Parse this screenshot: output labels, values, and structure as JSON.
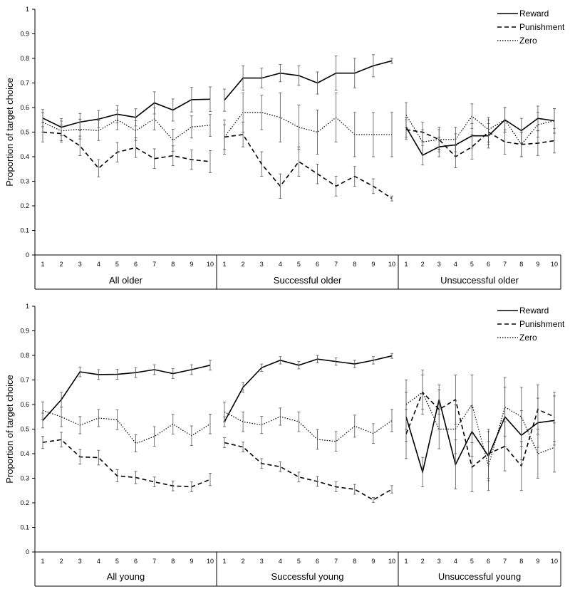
{
  "chart_data": {
    "type": "line",
    "ylabel": "Proportion of target choice",
    "yticks": [
      "0",
      "0.1",
      "0.2",
      "0.3",
      "0.4",
      "0.5",
      "0.6",
      "0.7",
      "0.8",
      "0.9",
      "1"
    ],
    "ylim": [
      0,
      1
    ],
    "x": [
      1,
      2,
      3,
      4,
      5,
      6,
      7,
      8,
      9,
      10
    ],
    "legend": [
      "Reward",
      "Punishment",
      "Zero"
    ],
    "legend_position": "top-right",
    "series_styles": {
      "Reward": "solid",
      "Punishment": "dashed",
      "Zero": "dotted"
    },
    "panels": [
      {
        "groups": [
          {
            "label": "All older",
            "series": [
              {
                "name": "Reward",
                "values": [
                  0.557,
                  0.52,
                  0.541,
                  0.553,
                  0.573,
                  0.56,
                  0.619,
                  0.59,
                  0.632,
                  0.634
                ],
                "errors": [
                  0.035,
                  0.035,
                  0.035,
                  0.035,
                  0.035,
                  0.035,
                  0.045,
                  0.045,
                  0.05,
                  0.05
                ]
              },
              {
                "name": "Punishment",
                "values": [
                  0.5,
                  0.494,
                  0.444,
                  0.353,
                  0.418,
                  0.437,
                  0.392,
                  0.404,
                  0.388,
                  0.38
                ],
                "errors": [
                  0.04,
                  0.035,
                  0.04,
                  0.035,
                  0.04,
                  0.04,
                  0.04,
                  0.04,
                  0.04,
                  0.045
                ]
              },
              {
                "name": "Zero",
                "values": [
                  0.54,
                  0.505,
                  0.512,
                  0.506,
                  0.55,
                  0.506,
                  0.554,
                  0.467,
                  0.521,
                  0.528
                ],
                "errors": [
                  0.04,
                  0.04,
                  0.04,
                  0.04,
                  0.04,
                  0.04,
                  0.045,
                  0.045,
                  0.045,
                  0.045
                ]
              }
            ]
          },
          {
            "label": "Successful older",
            "series": [
              {
                "name": "Reward",
                "values": [
                  0.63,
                  0.72,
                  0.72,
                  0.74,
                  0.73,
                  0.7,
                  0.74,
                  0.74,
                  0.77,
                  0.79
                ],
                "errors": [
                  0.045,
                  0.05,
                  0.04,
                  0.035,
                  0.04,
                  0.045,
                  0.07,
                  0.06,
                  0.045,
                  0.01
                ]
              },
              {
                "name": "Punishment",
                "values": [
                  0.48,
                  0.49,
                  0.37,
                  0.28,
                  0.38,
                  0.33,
                  0.28,
                  0.32,
                  0.28,
                  0.23
                ],
                "errors": [
                  0.05,
                  0.05,
                  0.05,
                  0.05,
                  0.06,
                  0.04,
                  0.04,
                  0.04,
                  0.03,
                  0.01
                ]
              },
              {
                "name": "Zero",
                "values": [
                  0.48,
                  0.58,
                  0.58,
                  0.56,
                  0.52,
                  0.5,
                  0.56,
                  0.49,
                  0.49,
                  0.49
                ],
                "errors": [
                  0.07,
                  0.08,
                  0.07,
                  0.1,
                  0.09,
                  0.09,
                  0.1,
                  0.09,
                  0.09,
                  0.09
                ]
              }
            ]
          },
          {
            "label": "Unsuccessful older",
            "series": [
              {
                "name": "Reward",
                "values": [
                  0.52,
                  0.406,
                  0.44,
                  0.448,
                  0.485,
                  0.485,
                  0.55,
                  0.506,
                  0.556,
                  0.546
                ],
                "errors": [
                  0.04,
                  0.04,
                  0.04,
                  0.045,
                  0.05,
                  0.05,
                  0.05,
                  0.05,
                  0.05,
                  0.05
                ]
              },
              {
                "name": "Punishment",
                "values": [
                  0.51,
                  0.5,
                  0.47,
                  0.4,
                  0.44,
                  0.5,
                  0.46,
                  0.45,
                  0.455,
                  0.465
                ],
                "errors": [
                  0.04,
                  0.04,
                  0.04,
                  0.045,
                  0.05,
                  0.05,
                  0.05,
                  0.05,
                  0.05,
                  0.05
                ]
              },
              {
                "name": "Zero",
                "values": [
                  0.57,
                  0.46,
                  0.47,
                  0.47,
                  0.565,
                  0.51,
                  0.55,
                  0.45,
                  0.53,
                  0.546
                ],
                "errors": [
                  0.05,
                  0.05,
                  0.05,
                  0.05,
                  0.05,
                  0.05,
                  0.05,
                  0.05,
                  0.05,
                  0.05
                ]
              }
            ]
          }
        ]
      },
      {
        "groups": [
          {
            "label": "All young",
            "series": [
              {
                "name": "Reward",
                "values": [
                  0.535,
                  0.62,
                  0.733,
                  0.722,
                  0.723,
                  0.73,
                  0.742,
                  0.726,
                  0.742,
                  0.76
                ],
                "errors": [
                  0.03,
                  0.03,
                  0.02,
                  0.02,
                  0.02,
                  0.02,
                  0.02,
                  0.02,
                  0.02,
                  0.02
                ]
              },
              {
                "name": "Punishment",
                "values": [
                  0.446,
                  0.457,
                  0.387,
                  0.384,
                  0.31,
                  0.303,
                  0.285,
                  0.269,
                  0.265,
                  0.295
                ],
                "errors": [
                  0.025,
                  0.03,
                  0.03,
                  0.03,
                  0.025,
                  0.025,
                  0.02,
                  0.02,
                  0.02,
                  0.025
                ]
              },
              {
                "name": "Zero",
                "values": [
                  0.576,
                  0.55,
                  0.516,
                  0.545,
                  0.538,
                  0.442,
                  0.47,
                  0.52,
                  0.473,
                  0.521
                ],
                "errors": [
                  0.035,
                  0.04,
                  0.035,
                  0.035,
                  0.04,
                  0.035,
                  0.04,
                  0.04,
                  0.04,
                  0.04
                ]
              }
            ]
          },
          {
            "label": "Successful young",
            "series": [
              {
                "name": "Reward",
                "values": [
                  0.53,
                  0.67,
                  0.75,
                  0.78,
                  0.76,
                  0.785,
                  0.775,
                  0.765,
                  0.78,
                  0.798
                ],
                "errors": [
                  0.02,
                  0.02,
                  0.015,
                  0.015,
                  0.015,
                  0.015,
                  0.015,
                  0.015,
                  0.015,
                  0.01
                ]
              },
              {
                "name": "Punishment",
                "values": [
                  0.445,
                  0.427,
                  0.36,
                  0.347,
                  0.305,
                  0.287,
                  0.265,
                  0.255,
                  0.212,
                  0.255
                ],
                "errors": [
                  0.02,
                  0.02,
                  0.02,
                  0.02,
                  0.02,
                  0.02,
                  0.02,
                  0.02,
                  0.01,
                  0.015
                ]
              },
              {
                "name": "Zero",
                "values": [
                  0.57,
                  0.53,
                  0.517,
                  0.551,
                  0.53,
                  0.458,
                  0.45,
                  0.512,
                  0.482,
                  0.535
                ],
                "errors": [
                  0.04,
                  0.04,
                  0.035,
                  0.035,
                  0.04,
                  0.04,
                  0.04,
                  0.045,
                  0.04,
                  0.045
                ]
              }
            ]
          },
          {
            "label": "Unsuccessful young",
            "series": [
              {
                "name": "Reward",
                "values": [
                  0.55,
                  0.325,
                  0.62,
                  0.356,
                  0.49,
                  0.39,
                  0.55,
                  0.475,
                  0.526,
                  0.535
                ],
                "errors": [
                  0.1,
                  0.06,
                  0.06,
                  0.1,
                  0.1,
                  0.1,
                  0.12,
                  0.1,
                  0.1,
                  0.1
                ]
              },
              {
                "name": "Punishment",
                "values": [
                  0.48,
                  0.65,
                  0.58,
                  0.62,
                  0.345,
                  0.4,
                  0.43,
                  0.35,
                  0.58,
                  0.55
                ],
                "errors": [
                  0.1,
                  0.09,
                  0.08,
                  0.1,
                  0.1,
                  0.1,
                  0.1,
                  0.1,
                  0.1,
                  0.1
                ]
              },
              {
                "name": "Zero",
                "values": [
                  0.6,
                  0.65,
                  0.5,
                  0.5,
                  0.6,
                  0.35,
                  0.59,
                  0.55,
                  0.4,
                  0.425
                ],
                "errors": [
                  0.1,
                  0.07,
                  0.08,
                  0.1,
                  0.12,
                  0.1,
                  0.12,
                  0.12,
                  0.1,
                  0.1
                ]
              }
            ]
          }
        ]
      }
    ]
  }
}
